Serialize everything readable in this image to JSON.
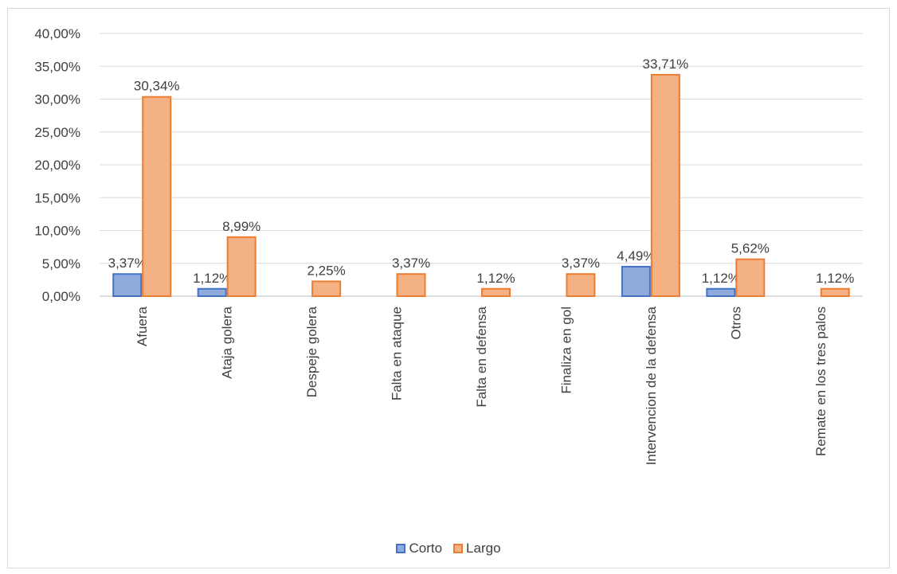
{
  "chart_data": {
    "type": "bar",
    "title": "",
    "xlabel": "",
    "ylabel": "",
    "ylim": [
      0,
      40
    ],
    "y_ticks": [
      "0,00%",
      "5,00%",
      "10,00%",
      "15,00%",
      "20,00%",
      "25,00%",
      "30,00%",
      "35,00%",
      "40,00%"
    ],
    "grid": true,
    "legend_position": "bottom",
    "categories": [
      "Afuera",
      "Ataja golera",
      "Despeje golera",
      "Falta en ataque",
      "Falta en defensa",
      "Finaliza en gol",
      "Intervencion de la defensa",
      "Otros",
      "Remate en los tres palos"
    ],
    "series": [
      {
        "name": "Corto",
        "color": "#8faadc",
        "border": "#4472c4",
        "values": [
          3.37,
          1.12,
          null,
          null,
          null,
          null,
          4.49,
          1.12,
          null
        ],
        "labels": [
          "3,37%",
          "1,12%",
          null,
          null,
          null,
          null,
          "4,49%",
          "1,12%",
          null
        ]
      },
      {
        "name": "Largo",
        "color": "#f4b183",
        "border": "#ed7d31",
        "values": [
          30.34,
          8.99,
          2.25,
          3.37,
          1.12,
          3.37,
          33.71,
          5.62,
          1.12
        ],
        "labels": [
          "30,34%",
          "8,99%",
          "2,25%",
          "3,37%",
          "1,12%",
          "3,37%",
          "33,71%",
          "5,62%",
          "1,12%"
        ]
      }
    ]
  }
}
